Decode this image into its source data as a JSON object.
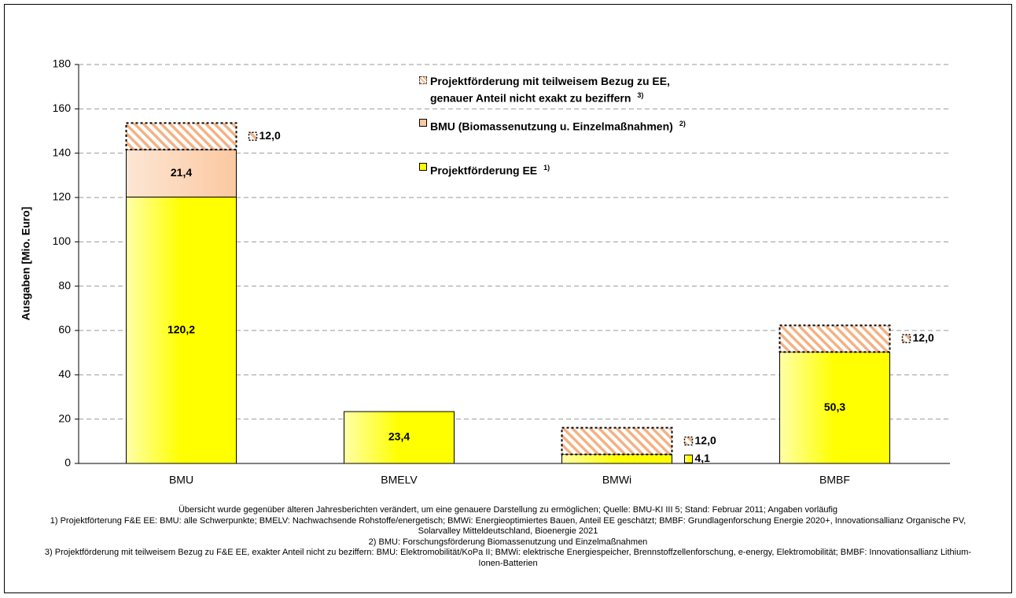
{
  "chart_data": {
    "type": "bar",
    "stacked": true,
    "y_label": "Ausgaben [Mio. Euro]",
    "categories": [
      "BMU",
      "BMELV",
      "BMWi",
      "BMBF"
    ],
    "series": [
      {
        "name": "Projektförderung EE",
        "note": "1)",
        "color": "#ffff00",
        "fill": "solid",
        "values": [
          120.2,
          23.4,
          4.1,
          50.3
        ],
        "value_labels": [
          "120,2",
          "23,4",
          "4,1",
          "50,3"
        ]
      },
      {
        "name": "BMU (Biomassenutzung u. Einzelmaßnahmen)",
        "note": "2)",
        "color": "#fbc8a0",
        "fill": "solid",
        "values": [
          21.4,
          null,
          null,
          null
        ],
        "value_labels": [
          "21,4",
          null,
          null,
          null
        ]
      },
      {
        "name": "Projektförderung mit teilweisem Bezug zu EE, genauer Anteil nicht exakt zu beziffern",
        "note": "3)",
        "color": "#f4b183",
        "fill": "hatch",
        "values": [
          12.0,
          null,
          12.0,
          12.0
        ],
        "value_labels": [
          "12,0",
          null,
          "12,0",
          "12,0"
        ]
      }
    ],
    "ylim": [
      0,
      180
    ],
    "yticks": [
      0,
      20,
      40,
      60,
      80,
      100,
      120,
      140,
      160,
      180
    ],
    "grid": true,
    "footnotes": [
      "Übersicht wurde gegenüber älteren Jahresberichten verändert, um eine genauere Darstellung zu ermöglichen; Quelle: BMU-KI III 5; Stand: Februar 2011; Angaben vorläufig",
      "1) Projektförterung F&E EE: BMU: alle Schwerpunkte; BMELV: Nachwachsende Rohstoffe/energetisch; BMWi: Energieoptimiertes Bauen, Anteil EE geschätzt; BMBF: Grundlagenforschung Energie 2020+, Innovationsallianz Organische PV, Solarvalley Mitteldeutschland, Bioenergie 2021",
      "2) BMU: Forschungsförderung Biomassenutzung und Einzelmaßnahmen",
      "3) Projektförderung mit teilweisem Bezug zu F&E EE, exakter Anteil nicht zu beziffern: BMU: Elektromobilität/KoPa II; BMWi: elektrische Energiespeicher, Brennstoffzellenforschung, e-energy, Elektromobilität; BMBF: Innovationsallianz Lithium-Ionen-Batterien"
    ]
  }
}
